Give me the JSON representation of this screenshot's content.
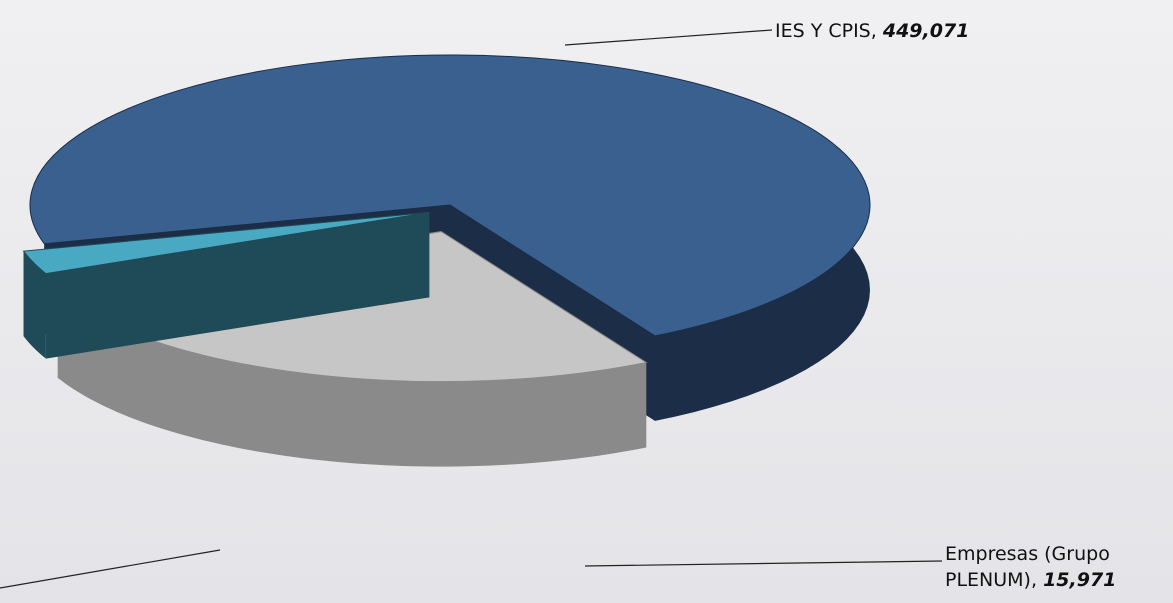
{
  "chart_data": {
    "type": "pie3d",
    "categories": [
      "IES Y CPIS",
      null,
      "Empresas (Grupo PLENUM)"
    ],
    "values": [
      449071,
      167000,
      15971
    ],
    "value_labels": [
      "449,071",
      null,
      "15,971"
    ],
    "label_separator": ",",
    "colors": [
      "#3a6090",
      "#c6c6c6",
      "#4aa9c2"
    ],
    "side_colors": [
      "#1b2d47",
      "#8a8a8a",
      "#1f4a58"
    ]
  }
}
